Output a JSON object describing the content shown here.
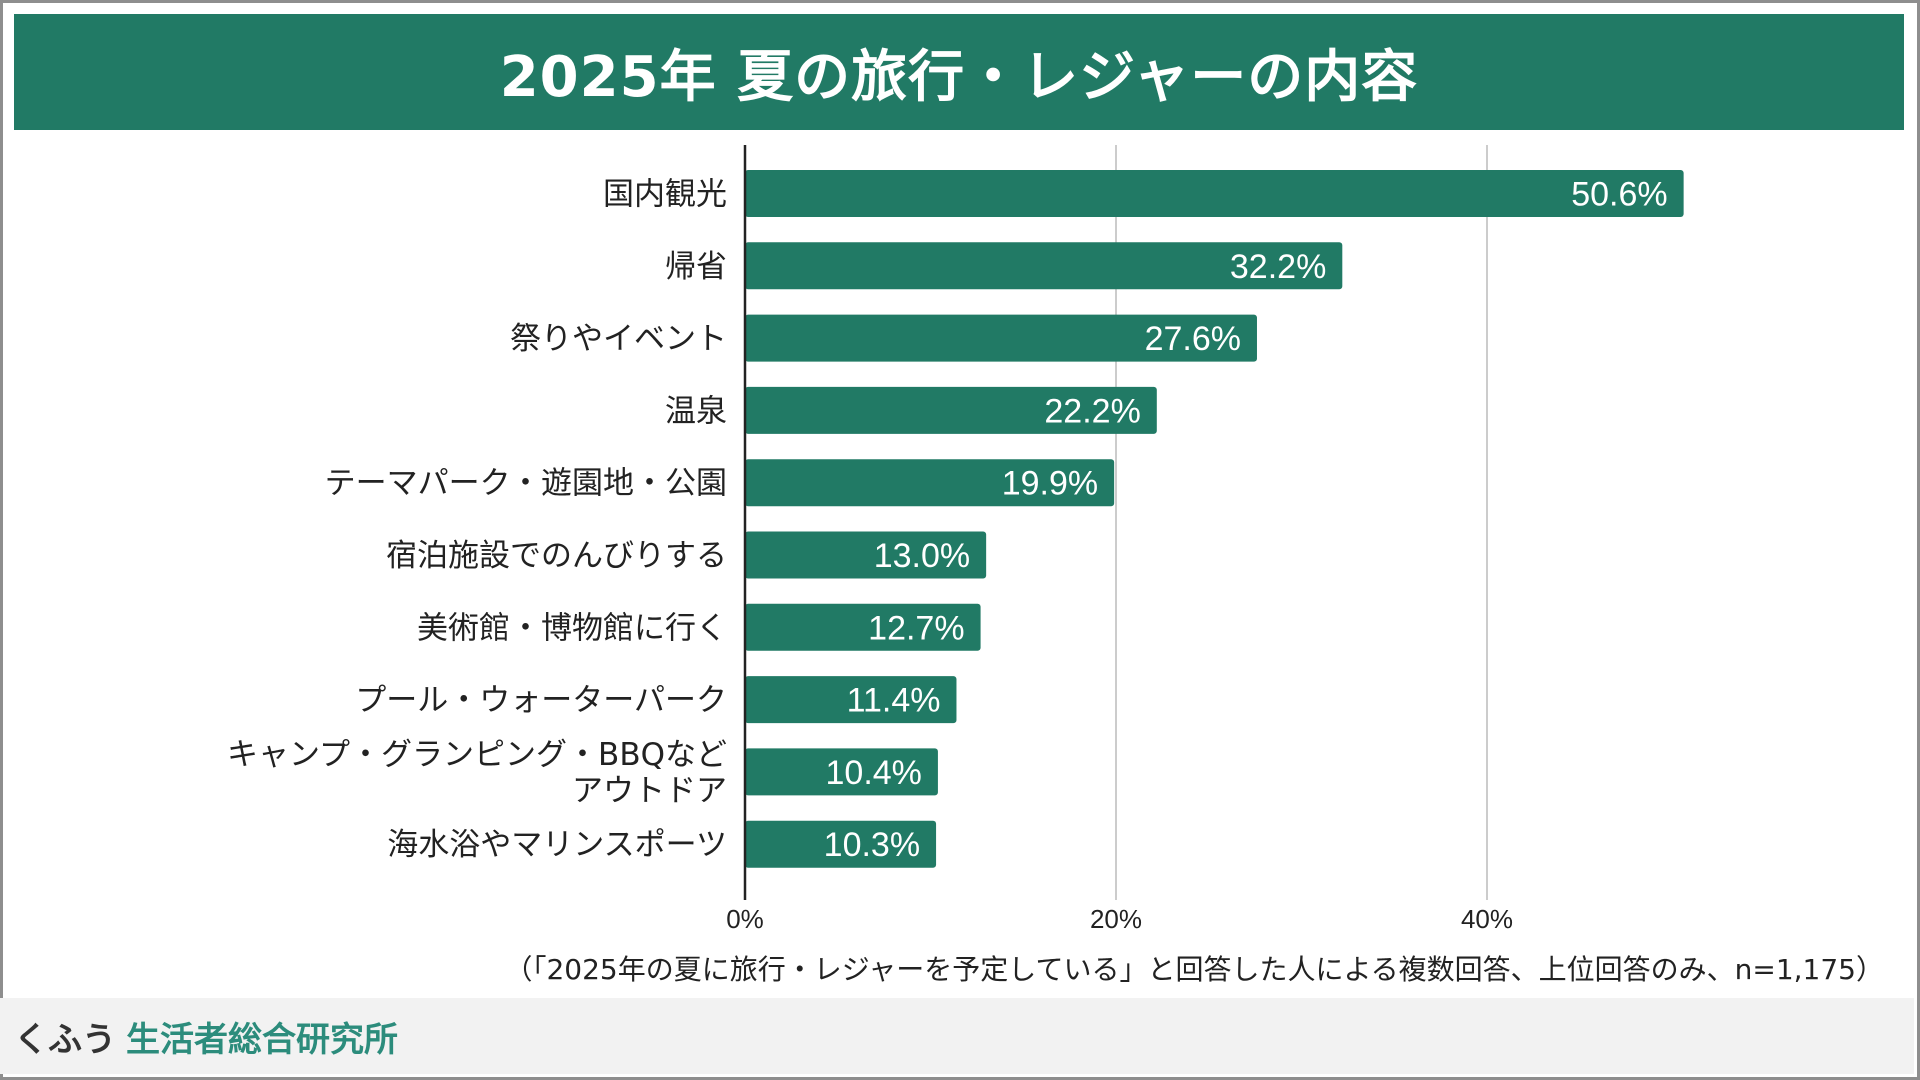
{
  "brand": {
    "prefix": "くふう",
    "name": "生活者総合研究所"
  },
  "colors": {
    "bar": "#217a65",
    "title_bg": "#217a65",
    "grid": "#cccccc",
    "axis": "#222222",
    "brand_accent": "#2c8c7c"
  },
  "footnote": "（「2025年の夏に旅行・レジャーを予定している」と回答した人による複数回答、上位回答のみ、n=1,175）",
  "chart_data": {
    "type": "bar",
    "orientation": "horizontal",
    "title": "2025年 夏の旅行・レジャーの内容",
    "xlabel": "",
    "ylabel": "",
    "xlim": [
      0,
      60
    ],
    "xticks": [
      0,
      20,
      40
    ],
    "xtick_labels": [
      "0%",
      "20%",
      "40%"
    ],
    "grid": true,
    "legend": "none",
    "categories": [
      [
        "国内観光"
      ],
      [
        "帰省"
      ],
      [
        "祭りやイベント"
      ],
      [
        "温泉"
      ],
      [
        "テーマパーク・遊園地・公園"
      ],
      [
        "宿泊施設でのんびりする"
      ],
      [
        "美術館・博物館に行く"
      ],
      [
        "プール・ウォーターパーク"
      ],
      [
        "キャンプ・グランピング・BBQなど",
        "アウトドア"
      ],
      [
        "海水浴やマリンスポーツ"
      ]
    ],
    "values": [
      50.6,
      32.2,
      27.6,
      22.2,
      19.9,
      13.0,
      12.7,
      11.4,
      10.4,
      10.3
    ],
    "value_labels": [
      "50.6%",
      "32.2%",
      "27.6%",
      "22.2%",
      "19.9%",
      "13.0%",
      "12.7%",
      "11.4%",
      "10.4%",
      "10.3%"
    ]
  }
}
